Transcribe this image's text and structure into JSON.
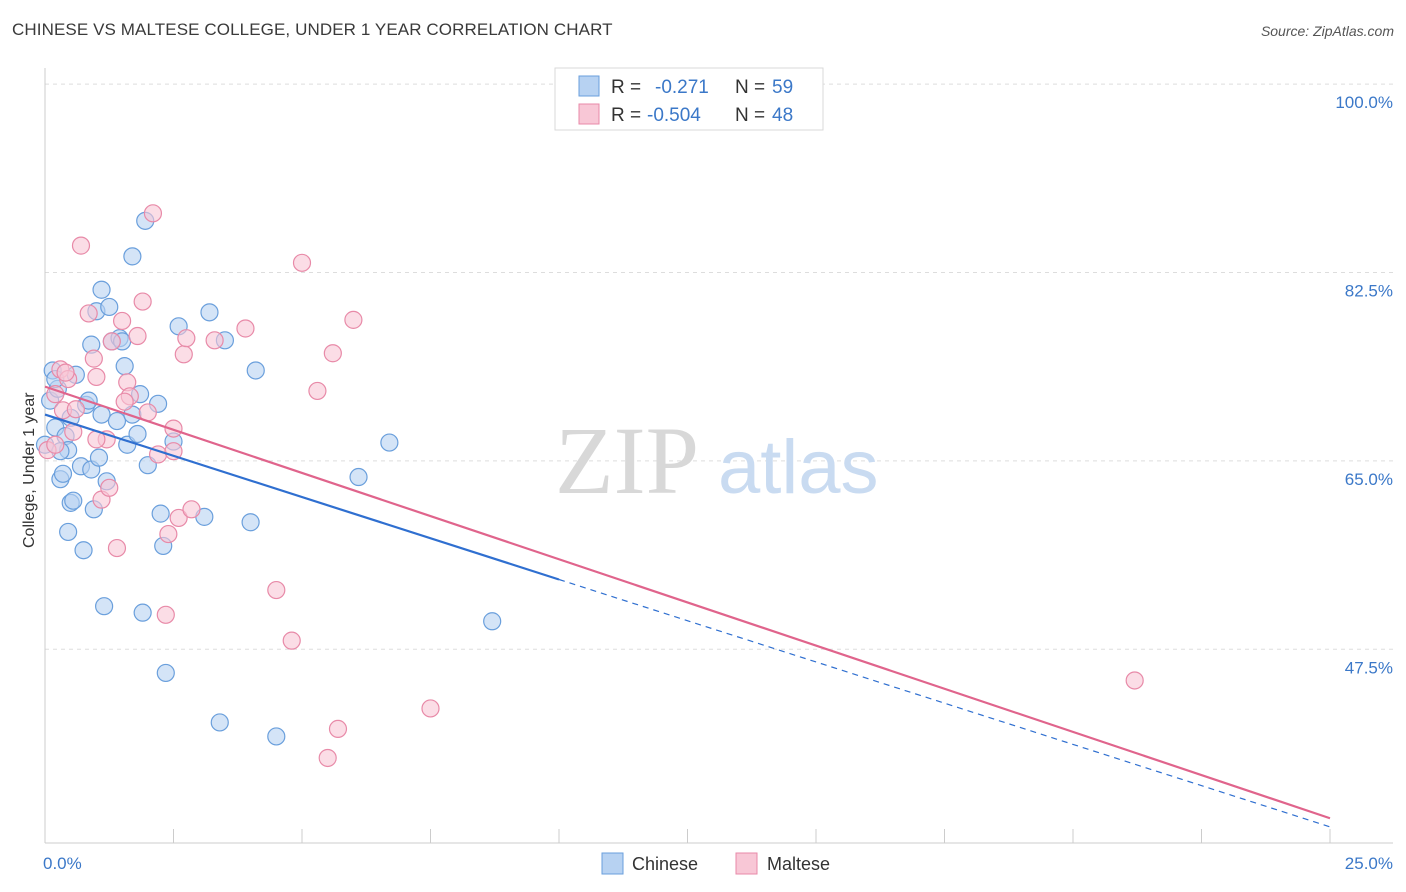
{
  "title": "CHINESE VS MALTESE COLLEGE, UNDER 1 YEAR CORRELATION CHART",
  "source": "Source: ZipAtlas.com",
  "watermark": {
    "zip": "ZIP",
    "atlas": "atlas"
  },
  "legend": [
    {
      "name": "Chinese",
      "r_label": "R =",
      "r_value": "-0.271",
      "n_label": "N =",
      "n_value": "59",
      "fill": "#b7d2f2",
      "stroke": "#6a9fdc"
    },
    {
      "name": "Maltese",
      "r_label": "R =",
      "r_value": "-0.504",
      "n_label": "N =",
      "n_value": "48",
      "fill": "#f8c7d6",
      "stroke": "#e88aa8"
    }
  ],
  "colors": {
    "blue": "#3b78c8",
    "blue_line": "#2f6fd0",
    "pink_line": "#e0648c",
    "grid": "#dddddd",
    "axis_text": "#3b78c8"
  },
  "chart_data": {
    "type": "scatter",
    "xlabel": "",
    "ylabel": "College, Under 1 year",
    "xlim": [
      0,
      25
    ],
    "ylim": [
      29.5,
      101.5
    ],
    "x_tick_labels": {
      "min": "0.0%",
      "max": "25.0%"
    },
    "y_ticks": [
      {
        "value": 100.0,
        "label": "100.0%"
      },
      {
        "value": 82.5,
        "label": "82.5%"
      },
      {
        "value": 65.0,
        "label": "65.0%"
      },
      {
        "value": 47.5,
        "label": "47.5%"
      }
    ],
    "series": [
      {
        "name": "Chinese",
        "points": [
          [
            0.0,
            66.5
          ],
          [
            0.1,
            70.6
          ],
          [
            0.15,
            73.4
          ],
          [
            0.2,
            68.1
          ],
          [
            0.25,
            71.7
          ],
          [
            0.3,
            63.3
          ],
          [
            0.35,
            63.8
          ],
          [
            0.4,
            67.3
          ],
          [
            0.45,
            66.0
          ],
          [
            0.45,
            58.4
          ],
          [
            0.5,
            61.1
          ],
          [
            0.55,
            61.3
          ],
          [
            0.6,
            73.0
          ],
          [
            0.7,
            64.5
          ],
          [
            0.75,
            56.7
          ],
          [
            0.8,
            70.2
          ],
          [
            0.85,
            70.6
          ],
          [
            0.9,
            64.2
          ],
          [
            0.95,
            60.5
          ],
          [
            1.0,
            78.9
          ],
          [
            1.05,
            65.3
          ],
          [
            1.1,
            69.3
          ],
          [
            1.15,
            51.5
          ],
          [
            1.1,
            80.9
          ],
          [
            1.2,
            63.1
          ],
          [
            1.25,
            79.3
          ],
          [
            1.3,
            76.1
          ],
          [
            1.4,
            68.7
          ],
          [
            1.45,
            76.4
          ],
          [
            1.5,
            76.1
          ],
          [
            1.55,
            73.8
          ],
          [
            1.6,
            66.5
          ],
          [
            1.7,
            84.0
          ],
          [
            1.7,
            69.3
          ],
          [
            1.8,
            67.5
          ],
          [
            1.85,
            71.2
          ],
          [
            1.9,
            50.9
          ],
          [
            1.95,
            87.3
          ],
          [
            2.0,
            64.6
          ],
          [
            2.2,
            70.3
          ],
          [
            2.25,
            60.1
          ],
          [
            2.3,
            57.1
          ],
          [
            2.35,
            45.3
          ],
          [
            2.5,
            66.8
          ],
          [
            2.6,
            77.5
          ],
          [
            3.1,
            59.8
          ],
          [
            3.2,
            78.8
          ],
          [
            3.4,
            40.7
          ],
          [
            3.5,
            76.2
          ],
          [
            4.0,
            59.3
          ],
          [
            4.1,
            73.4
          ],
          [
            4.5,
            39.4
          ],
          [
            6.1,
            63.5
          ],
          [
            6.7,
            66.7
          ],
          [
            8.7,
            50.1
          ],
          [
            0.2,
            72.6
          ],
          [
            0.5,
            69.0
          ],
          [
            0.9,
            75.8
          ],
          [
            0.3,
            65.9
          ]
        ]
      },
      {
        "name": "Maltese",
        "points": [
          [
            0.05,
            66.0
          ],
          [
            0.2,
            71.2
          ],
          [
            0.3,
            73.5
          ],
          [
            0.35,
            69.7
          ],
          [
            0.45,
            72.6
          ],
          [
            0.55,
            67.7
          ],
          [
            0.6,
            69.8
          ],
          [
            0.7,
            85.0
          ],
          [
            0.85,
            78.7
          ],
          [
            0.95,
            74.5
          ],
          [
            1.0,
            72.8
          ],
          [
            1.1,
            61.4
          ],
          [
            1.2,
            67.0
          ],
          [
            1.25,
            62.5
          ],
          [
            1.3,
            76.1
          ],
          [
            1.4,
            56.9
          ],
          [
            1.5,
            78.0
          ],
          [
            1.6,
            72.3
          ],
          [
            1.65,
            71.0
          ],
          [
            1.8,
            76.6
          ],
          [
            1.9,
            79.8
          ],
          [
            2.0,
            69.5
          ],
          [
            2.1,
            88.0
          ],
          [
            2.2,
            65.6
          ],
          [
            2.35,
            50.7
          ],
          [
            2.4,
            58.2
          ],
          [
            2.5,
            65.9
          ],
          [
            2.6,
            59.7
          ],
          [
            2.7,
            74.9
          ],
          [
            2.75,
            76.4
          ],
          [
            2.85,
            60.5
          ],
          [
            3.3,
            76.2
          ],
          [
            3.9,
            77.3
          ],
          [
            4.5,
            53.0
          ],
          [
            4.8,
            48.3
          ],
          [
            5.0,
            83.4
          ],
          [
            5.3,
            71.5
          ],
          [
            5.5,
            37.4
          ],
          [
            5.6,
            75.0
          ],
          [
            5.7,
            40.1
          ],
          [
            6.0,
            78.1
          ],
          [
            7.5,
            42.0
          ],
          [
            21.2,
            44.6
          ],
          [
            2.5,
            68.0
          ],
          [
            1.0,
            67.0
          ],
          [
            0.2,
            66.5
          ],
          [
            1.55,
            70.5
          ],
          [
            0.4,
            73.2
          ]
        ]
      }
    ],
    "trend_lines": [
      {
        "series": "Chinese",
        "x_start": 0.0,
        "y_start": 69.3,
        "x_solid_end": 10.0,
        "x_end": 25.0,
        "y_end": 31.0,
        "style": "solid then dashed"
      },
      {
        "series": "Maltese",
        "x_start": 0.0,
        "y_start": 71.9,
        "x_end": 25.0,
        "y_end": 31.8,
        "style": "solid"
      }
    ]
  }
}
